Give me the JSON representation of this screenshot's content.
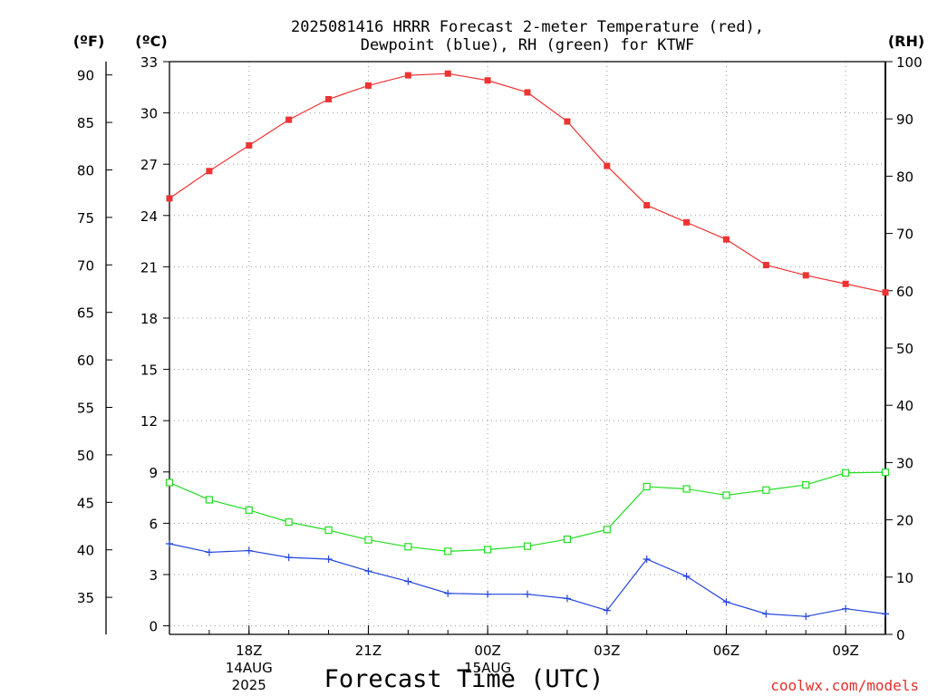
{
  "chart_data": {
    "type": "line",
    "title_line1": "2025081416 HRRR Forecast 2-meter Temperature (red),",
    "title_line2": "Dewpoint (blue), RH (green) for KTWF",
    "xlabel": "Forecast Time (UTC)",
    "credit": "coolwx.com/models",
    "unit_f": "(ºF)",
    "unit_c": "(ºC)",
    "unit_rh": "(RH)",
    "grid": true,
    "x_hours": [
      16,
      17,
      18,
      19,
      20,
      21,
      22,
      23,
      24,
      25,
      26,
      27,
      28,
      29,
      30,
      31,
      32,
      33,
      34
    ],
    "x_ticks": [
      {
        "hour": 18,
        "label": "18Z",
        "date": "14AUG",
        "year": "2025"
      },
      {
        "hour": 21,
        "label": "21Z",
        "date": "",
        "year": ""
      },
      {
        "hour": 24,
        "label": "00Z",
        "date": "15AUG",
        "year": ""
      },
      {
        "hour": 27,
        "label": "03Z",
        "date": "",
        "year": ""
      },
      {
        "hour": 30,
        "label": "06Z",
        "date": "",
        "year": ""
      },
      {
        "hour": 33,
        "label": "09Z",
        "date": "",
        "year": ""
      }
    ],
    "y_celsius": {
      "range": [
        -0.5,
        33
      ],
      "ticks": [
        0,
        3,
        6,
        9,
        12,
        15,
        18,
        21,
        24,
        27,
        30,
        33
      ]
    },
    "y_fahrenheit": {
      "ticks": [
        35,
        40,
        45,
        50,
        55,
        60,
        65,
        70,
        75,
        80,
        85,
        90
      ]
    },
    "y_rh": {
      "range": [
        0,
        100
      ],
      "ticks": [
        0,
        10,
        20,
        30,
        40,
        50,
        60,
        70,
        80,
        90,
        100
      ]
    },
    "series": [
      {
        "axis": "celsius",
        "color": "#ee3333",
        "marker": "filled-square",
        "values": [
          25.0,
          26.6,
          28.1,
          29.6,
          30.8,
          31.6,
          32.2,
          32.3,
          31.9,
          31.2,
          29.5,
          26.9,
          24.6,
          23.6,
          22.6,
          21.1,
          20.5,
          20.0,
          19.5
        ]
      },
      {
        "axis": "celsius",
        "color": "#2244dd",
        "marker": "plus",
        "values": [
          4.8,
          4.3,
          4.4,
          4.0,
          3.9,
          3.2,
          2.6,
          1.9,
          1.85,
          1.85,
          1.6,
          0.9,
          3.9,
          2.9,
          1.4,
          0.7,
          0.55,
          1.0,
          0.7
        ]
      },
      {
        "axis": "rh",
        "color": "#22dd22",
        "marker": "open-square",
        "values": [
          26.5,
          23.5,
          21.7,
          19.6,
          18.2,
          16.5,
          15.3,
          14.5,
          14.8,
          15.4,
          16.6,
          18.3,
          25.8,
          25.4,
          24.3,
          25.2,
          26.1,
          28.2,
          28.3
        ]
      }
    ]
  }
}
